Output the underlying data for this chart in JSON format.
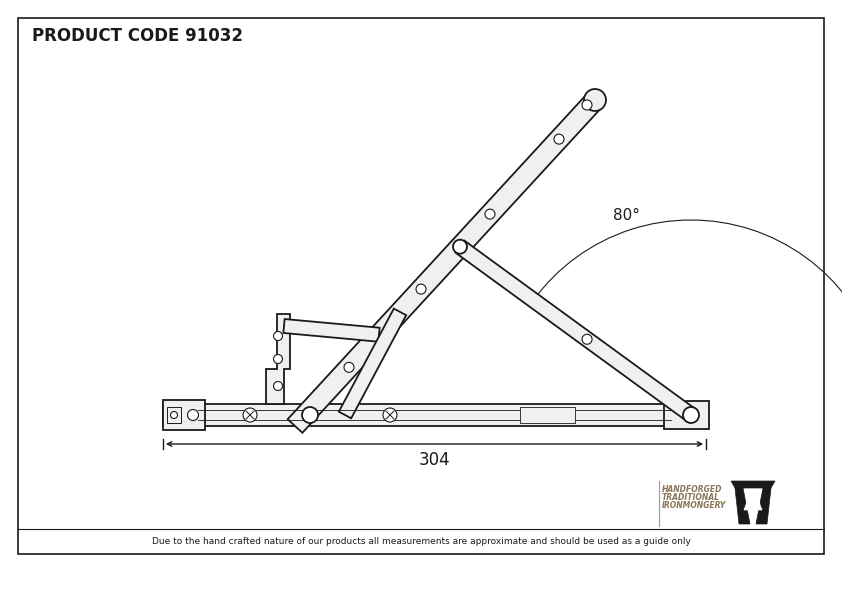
{
  "title": "PRODUCT CODE 91032",
  "footer_text": "Due to the hand crafted nature of our products all measurements are approximate and should be used as a guide only",
  "brand_line1": "HANDFORGED",
  "brand_line2": "TRADITIONAL",
  "brand_line3": "IRONMONGERY",
  "dimension_label": "304",
  "angle_label": "80°",
  "bg_color": "#ffffff",
  "line_color": "#1a1a1a",
  "rail_fc": "#f0f0ee",
  "arm_fc": "#f0f0ee"
}
